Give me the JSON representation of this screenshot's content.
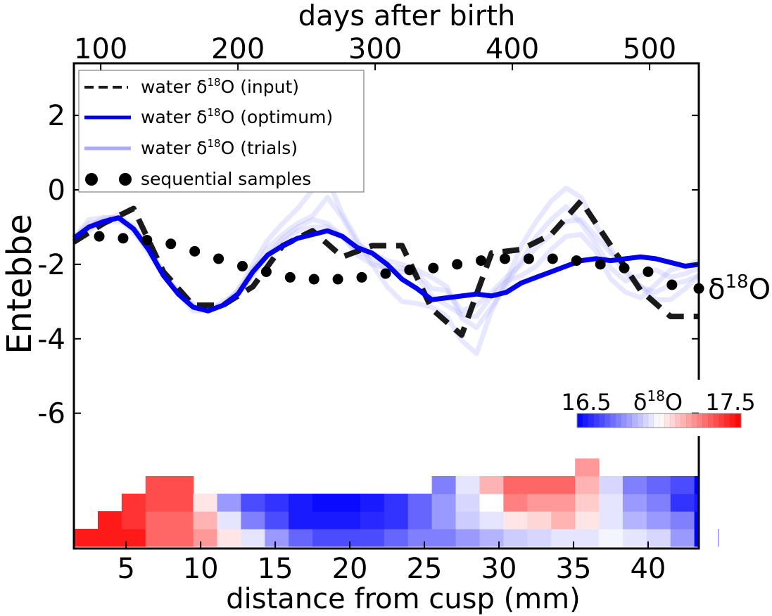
{
  "chart_data": {
    "type": "line",
    "top_axis_label": "days after birth",
    "top_ticks": [
      100,
      200,
      300,
      400,
      500
    ],
    "xlabel": "distance from cusp (mm)",
    "x_ticks": [
      5,
      10,
      15,
      20,
      25,
      30,
      35,
      40
    ],
    "ylabel": "Entebbe",
    "y_ticks": [
      2,
      0,
      -2,
      -4,
      -6
    ],
    "y_tick_labels": [
      "2",
      "0",
      "-2",
      "-4",
      "-6"
    ],
    "xlim": [
      1.5,
      43.4
    ],
    "ylim": [
      -6.8,
      3.4
    ],
    "right_label": "δ18O",
    "legend": {
      "position": "top-left",
      "entries": [
        {
          "label": "water δ18O (input)",
          "style": "dashed",
          "color": "#1a1a1a"
        },
        {
          "label": "water δ18O (optimum)",
          "style": "solid",
          "color": "#0000ee"
        },
        {
          "label": "water δ18O (trials)",
          "style": "solid",
          "color": "#aaaaff"
        },
        {
          "label": "sequential samples",
          "style": "dots",
          "color": "#000000"
        }
      ]
    },
    "colorbar": {
      "label": "δ18O",
      "min_label": "16.5",
      "max_label": "17.5",
      "min": 16.5,
      "max": 17.5
    },
    "series": [
      {
        "name": "water δ18O (input)",
        "x": [
          1.5,
          3.5,
          5.5,
          7.5,
          9.5,
          11.5,
          13.5,
          15.5,
          17.5,
          19.5,
          21.5,
          23.5,
          25.5,
          27.5,
          29.5,
          31.5,
          33.5,
          35.5,
          37.5,
          39.5,
          41.5,
          43.4
        ],
        "y": [
          -1.4,
          -0.9,
          -0.5,
          -2.2,
          -3.1,
          -3.1,
          -2.6,
          -1.5,
          -1.1,
          -1.8,
          -1.5,
          -1.5,
          -3.2,
          -3.9,
          -1.7,
          -1.6,
          -1.2,
          -0.3,
          -1.5,
          -2.7,
          -3.4,
          -3.4
        ]
      },
      {
        "name": "water δ18O (optimum)",
        "x": [
          1.5,
          2.5,
          3.5,
          4.5,
          5.5,
          6.5,
          7.5,
          8.5,
          9.5,
          10.5,
          11.5,
          12.5,
          13.5,
          14.5,
          15.5,
          16.5,
          17.5,
          18.5,
          19.5,
          20.5,
          21.5,
          22.5,
          23.5,
          24.5,
          25.5,
          26.5,
          27.5,
          28.5,
          29.5,
          30.5,
          31.5,
          32.5,
          33.5,
          34.5,
          35.5,
          36.5,
          37.5,
          38.5,
          39.5,
          40.5,
          41.5,
          42.5,
          43.4
        ],
        "y": [
          -1.3,
          -1.0,
          -0.85,
          -0.75,
          -1.05,
          -1.6,
          -2.3,
          -2.8,
          -3.15,
          -3.25,
          -3.1,
          -2.8,
          -2.2,
          -1.75,
          -1.5,
          -1.3,
          -1.2,
          -1.1,
          -1.25,
          -1.55,
          -1.7,
          -2.0,
          -2.4,
          -2.65,
          -2.95,
          -2.9,
          -2.85,
          -2.8,
          -2.85,
          -2.75,
          -2.5,
          -2.35,
          -2.2,
          -2.05,
          -1.9,
          -1.85,
          -1.9,
          -1.85,
          -1.8,
          -1.85,
          -1.95,
          -2.05,
          -2.0
        ]
      },
      {
        "name": "sequential samples",
        "x": [
          3.2,
          4.8,
          6.4,
          8.0,
          9.6,
          11.2,
          12.8,
          14.4,
          16.0,
          17.6,
          19.2,
          20.8,
          22.4,
          24.0,
          25.6,
          27.2,
          28.8,
          30.4,
          32.0,
          33.6,
          35.2,
          36.8,
          38.4,
          40.0,
          41.6,
          43.4
        ],
        "y": [
          -1.25,
          -1.3,
          -1.35,
          -1.45,
          -1.65,
          -1.85,
          -2.05,
          -2.2,
          -2.35,
          -2.4,
          -2.4,
          -2.35,
          -2.25,
          -2.15,
          -2.1,
          -2.0,
          -1.9,
          -1.85,
          -1.85,
          -1.85,
          -1.9,
          -2.0,
          -2.1,
          -2.2,
          -2.55,
          -2.65
        ]
      }
    ],
    "heatmap": {
      "x_start": 1.5,
      "column_width": 1.6,
      "columns": [
        [
          17.45
        ],
        [
          17.45,
          17.45
        ],
        [
          17.45,
          17.4,
          17.4
        ],
        [
          17.3,
          17.3,
          17.35,
          17.35
        ],
        [
          17.3,
          17.3,
          17.35,
          17.35
        ],
        [
          17.2,
          17.15,
          17.05
        ],
        [
          17.05,
          16.95,
          16.8
        ],
        [
          16.95,
          16.75,
          16.65
        ],
        [
          16.8,
          16.65,
          16.6
        ],
        [
          16.7,
          16.55,
          16.55
        ],
        [
          16.65,
          16.55,
          16.52
        ],
        [
          16.65,
          16.55,
          16.52
        ],
        [
          16.65,
          16.58,
          16.55
        ],
        [
          16.7,
          16.6,
          16.6
        ],
        [
          16.75,
          16.7,
          16.7
        ],
        [
          16.75,
          16.8,
          16.8,
          16.75
        ],
        [
          16.8,
          16.9,
          16.92,
          16.95
        ],
        [
          16.85,
          16.95,
          17.0,
          17.15
        ],
        [
          16.9,
          17.05,
          17.25,
          17.3
        ],
        [
          16.92,
          17.08,
          17.2,
          17.3
        ],
        [
          16.95,
          17.15,
          17.2,
          17.3
        ],
        [
          16.95,
          17.05,
          17.1,
          17.15,
          17.2
        ],
        [
          16.98,
          16.95,
          16.95,
          16.92
        ],
        [
          16.95,
          16.85,
          16.8,
          16.75
        ],
        [
          16.92,
          16.8,
          16.75,
          16.7
        ],
        [
          16.8,
          16.75,
          16.6,
          16.65
        ],
        [
          16.5,
          16.5,
          16.55,
          16.5
        ],
        [
          16.42
        ]
      ]
    }
  }
}
